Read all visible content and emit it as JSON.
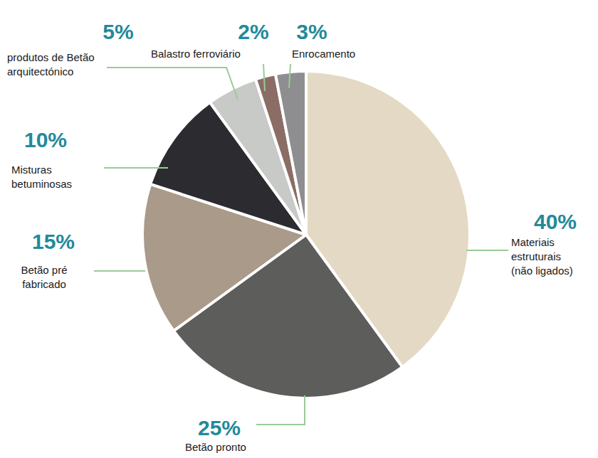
{
  "chart_data": {
    "type": "pie",
    "categories": [
      "Materiais estruturais (não ligados)",
      "Betão pronto",
      "Betão pré fabricado",
      "Misturas betuminosas",
      "produtos de Betão arquitectónico",
      "Balastro ferroviário",
      "Enrocamento"
    ],
    "values": [
      40,
      25,
      15,
      10,
      5,
      2,
      3
    ],
    "value_labels": [
      "40%",
      "25%",
      "15%",
      "10%",
      "5%",
      "2%",
      "3%"
    ],
    "colors": [
      "#e4d9c4",
      "#5d5d5b",
      "#a99a8a",
      "#2c2c30",
      "#c8cac7",
      "#8b6d66",
      "#8e8e90"
    ],
    "data_labels": true
  }
}
